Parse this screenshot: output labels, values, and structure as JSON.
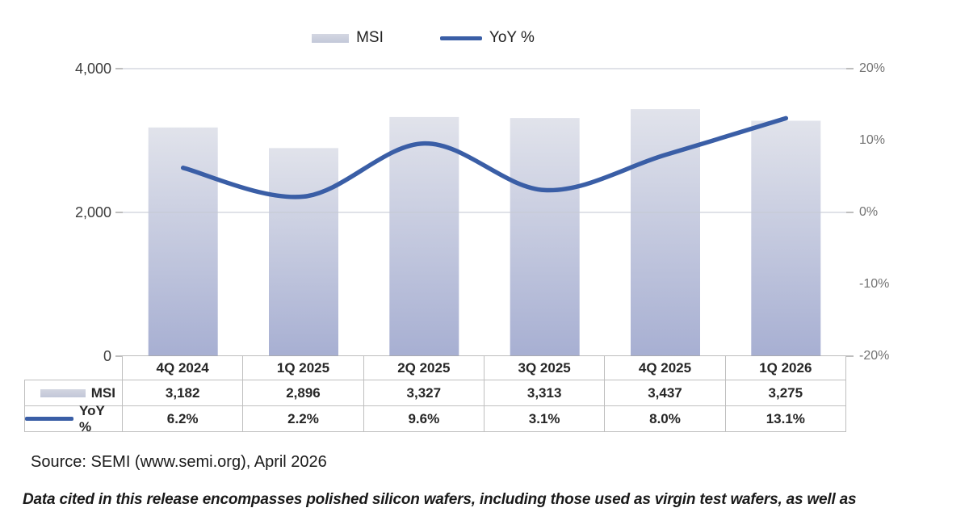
{
  "legend": {
    "msi_label": "MSI",
    "yoy_label": "YoY %"
  },
  "chart_data": {
    "type": "bar+line combo",
    "categories": [
      "4Q 2024",
      "1Q 2025",
      "2Q 2025",
      "3Q 2025",
      "4Q 2025",
      "1Q 2026"
    ],
    "series": [
      {
        "name": "MSI",
        "type": "bar",
        "axis": "left",
        "values": [
          3182,
          2896,
          3327,
          3313,
          3437,
          3275
        ]
      },
      {
        "name": "YoY %",
        "type": "line",
        "axis": "right",
        "values": [
          6.2,
          2.2,
          9.6,
          3.1,
          8.0,
          13.1
        ]
      }
    ],
    "left_axis": {
      "min": 0,
      "max": 4000,
      "tick_values": [
        4000,
        2000,
        0
      ],
      "tick_labels": [
        "4,000",
        "2,000",
        "0"
      ]
    },
    "right_axis": {
      "min": -20,
      "max": 20,
      "tick_values": [
        20,
        10,
        0,
        -10,
        -20
      ],
      "tick_labels": [
        "20%",
        "10%",
        "0%",
        "-10%",
        "-20%"
      ]
    },
    "legend_position": "top",
    "grid": "horizontal-major",
    "colors": {
      "bar_gradient_top": "#e1e3eb",
      "bar_gradient_bottom": "#a7afd2",
      "line": "#3a5ea6",
      "gridline": "#c6cad4",
      "axis": "#a8a8a8"
    }
  },
  "table": {
    "columns": [
      "4Q 2024",
      "1Q 2025",
      "2Q 2025",
      "3Q 2025",
      "4Q 2025",
      "1Q 2026"
    ],
    "rows": [
      {
        "label": "MSI",
        "swatch": "bar",
        "values": [
          "3,182",
          "2,896",
          "3,327",
          "3,313",
          "3,437",
          "3,275"
        ]
      },
      {
        "label": "YoY %",
        "swatch": "line",
        "values": [
          "6.2%",
          "2.2%",
          "9.6%",
          "3.1%",
          "8.0%",
          "13.1%"
        ]
      }
    ]
  },
  "source_text": "Source: SEMI (www.semi.org), April 2026",
  "footnote_text": "Data cited in this release encompasses polished silicon wafers, including those used as virgin test wafers, as well as"
}
